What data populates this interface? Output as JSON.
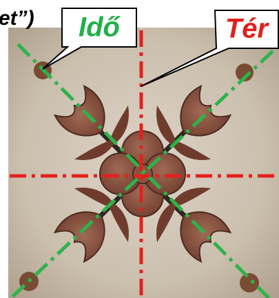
{
  "header_fragment": "et”)",
  "labels": {
    "time": "Idő",
    "space": "Tér"
  }
}
